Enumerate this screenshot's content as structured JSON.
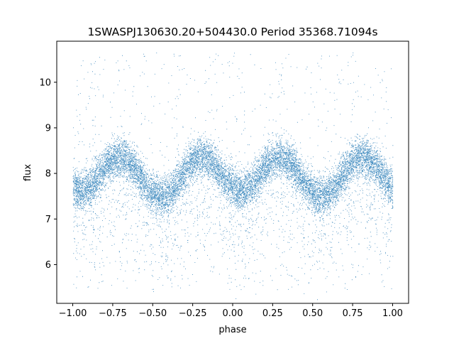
{
  "chart_data": {
    "type": "scatter",
    "title": "1SWASPJ130630.20+504430.0 Period 35368.71094s",
    "xlabel": "phase",
    "ylabel": "flux",
    "xlim": [
      -1.1,
      1.1
    ],
    "ylim": [
      5.15,
      10.9
    ],
    "xticks": [
      -1.0,
      -0.75,
      -0.5,
      -0.25,
      0.0,
      0.25,
      0.5,
      0.75,
      1.0
    ],
    "xtick_labels": [
      "−1.00",
      "−0.75",
      "−0.50",
      "−0.25",
      "0.00",
      "0.25",
      "0.50",
      "0.75",
      "1.00"
    ],
    "yticks": [
      6,
      7,
      8,
      9,
      10
    ],
    "ytick_labels": [
      "6",
      "7",
      "8",
      "9",
      "10"
    ],
    "grid": false,
    "legend": "none",
    "marker_color": "#1f77b4",
    "model": {
      "description_of_trend": "double-hump light curve repeated every 1.0 in phase",
      "maxima_phase": [
        -0.7,
        -0.2,
        0.3,
        0.8
      ],
      "maxima_flux": 8.42,
      "minima_phase": [
        -0.95,
        -0.45,
        0.05,
        0.55
      ],
      "minima_flux_primary": 7.7,
      "minima_flux_secondary": 7.55,
      "scatter_sigma": 0.22,
      "outlier_range": [
        5.45,
        10.65
      ],
      "points_per_cycle": 7500
    }
  }
}
